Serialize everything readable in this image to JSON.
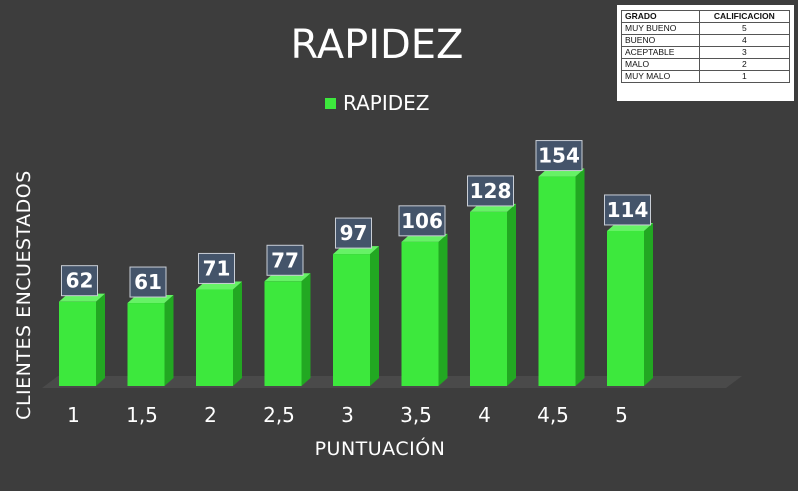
{
  "chart_data": {
    "type": "bar",
    "title": "RAPIDEZ",
    "legend": [
      "RAPIDEZ"
    ],
    "legend_placement": "top-center",
    "xlabel": "PUNTUACIÓN",
    "ylabel": "CLIENTES ENCUESTADOS",
    "categories": [
      "1",
      "1,5",
      "2",
      "2,5",
      "3",
      "3,5",
      "4",
      "4,5",
      "5"
    ],
    "series": [
      {
        "name": "RAPIDEZ",
        "values": [
          62,
          61,
          71,
          77,
          97,
          106,
          128,
          154,
          114
        ]
      }
    ],
    "data_labels": [
      "62",
      "61",
      "71",
      "77",
      "97",
      "106",
      "128",
      "154",
      "114"
    ],
    "ylim": [
      0,
      160
    ],
    "grid": false,
    "colors": {
      "background": "#3d3d3d",
      "bar_front": "#3de83d",
      "bar_side": "#22a822",
      "bar_top": "#66f266",
      "floor": "#4a4a4a",
      "label_box": "#44546a"
    }
  },
  "rating_table": {
    "headers": [
      "GRADO",
      "CALIFICACION"
    ],
    "rows": [
      [
        "MUY BUENO",
        "5"
      ],
      [
        "BUENO",
        "4"
      ],
      [
        "ACEPTABLE",
        "3"
      ],
      [
        "MALO",
        "2"
      ],
      [
        "MUY MALO",
        "1"
      ]
    ]
  }
}
